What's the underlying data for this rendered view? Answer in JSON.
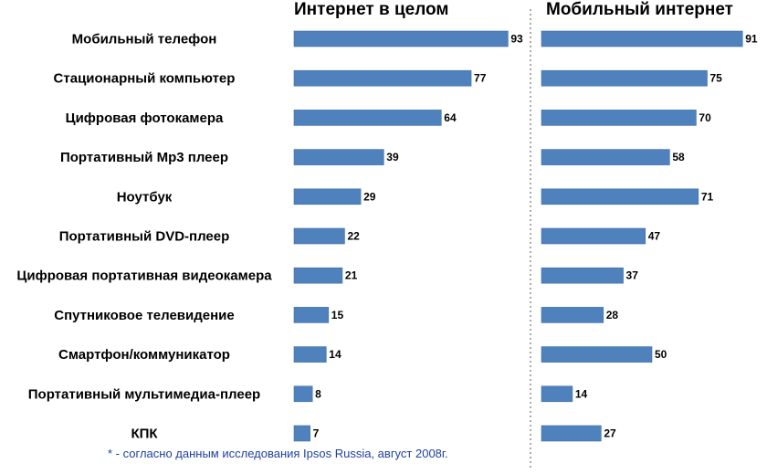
{
  "chart_data": {
    "type": "bar",
    "orientation": "horizontal",
    "categories": [
      "Мобильный телефон",
      "Стационарный компьютер",
      "Цифровая фотокамера",
      "Портативный Mp3 плеер",
      "Ноутбук",
      "Портативный DVD-плеер",
      "Цифровая портативная видеокамера",
      "Спутниковое телевидение",
      "Смартфон/коммуникатор",
      "Портативный мультимедиа-плеер",
      "КПК"
    ],
    "series": [
      {
        "name": "Интернет в целом",
        "values": [
          93,
          77,
          64,
          39,
          29,
          22,
          21,
          15,
          14,
          8,
          7
        ]
      },
      {
        "name": "Мобильный интернет",
        "values": [
          91,
          75,
          70,
          58,
          71,
          47,
          37,
          28,
          50,
          14,
          27
        ]
      }
    ],
    "xlim": [
      0,
      100
    ],
    "grid": false,
    "bar_color": "#4f81bd",
    "footnote": "* - согласно данным исследования Ipsos Russia, август 2008г."
  }
}
